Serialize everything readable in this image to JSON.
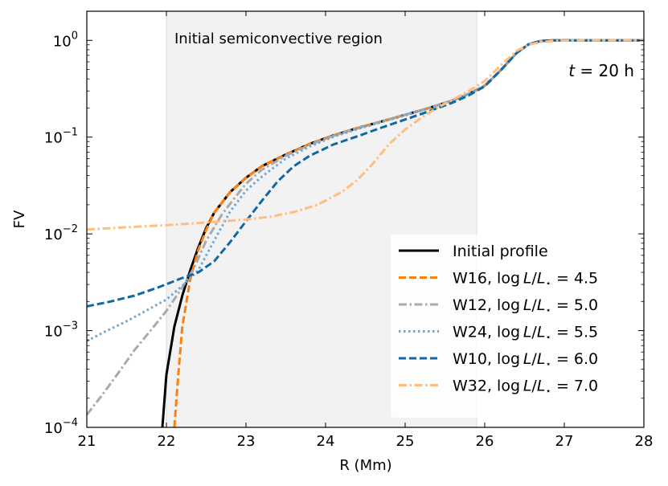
{
  "chart_data": {
    "type": "line",
    "title": "",
    "xlabel": "R (Mm)",
    "ylabel": "FV",
    "xlim": [
      21,
      28
    ],
    "ylim": [
      0.0001,
      2
    ],
    "yscale": "log",
    "x_ticks": [
      21,
      22,
      23,
      24,
      25,
      26,
      27,
      28
    ],
    "x_tick_labels": [
      "21",
      "22",
      "23",
      "24",
      "25",
      "26",
      "27",
      "28"
    ],
    "y_ticks": [
      {
        "value": 1,
        "base": "10",
        "exp": "0"
      },
      {
        "value": 0.1,
        "base": "10",
        "exp": "−1"
      },
      {
        "value": 0.01,
        "base": "10",
        "exp": "−2"
      },
      {
        "value": 0.001,
        "base": "10",
        "exp": "−3"
      },
      {
        "value": 0.0001,
        "base": "10",
        "exp": "−4"
      }
    ],
    "shaded_region": {
      "x": [
        22.0,
        25.9
      ],
      "label": "Initial semiconvective region"
    },
    "time_annotation": {
      "var": "t",
      "text": " = 20 h"
    },
    "legend_position": "lower-right",
    "series": [
      {
        "name": "Initial profile",
        "legend_text": {
          "prefix": "Initial profile",
          "math": false
        },
        "color": "#000000",
        "dash": "solid",
        "width": 3,
        "points": [
          [
            21.95,
            0.0001
          ],
          [
            22.0,
            0.00035
          ],
          [
            22.1,
            0.0011
          ],
          [
            22.2,
            0.0023
          ],
          [
            22.3,
            0.0042
          ],
          [
            22.4,
            0.0072
          ],
          [
            22.5,
            0.0115
          ],
          [
            22.6,
            0.0165
          ],
          [
            22.8,
            0.027
          ],
          [
            23.0,
            0.038
          ],
          [
            23.2,
            0.05
          ],
          [
            23.5,
            0.066
          ],
          [
            23.8,
            0.085
          ],
          [
            24.1,
            0.104
          ],
          [
            24.4,
            0.124
          ],
          [
            24.7,
            0.145
          ],
          [
            25.0,
            0.17
          ],
          [
            25.3,
            0.2
          ],
          [
            25.6,
            0.24
          ],
          [
            25.8,
            0.28
          ],
          [
            26.0,
            0.34
          ],
          [
            26.2,
            0.49
          ],
          [
            26.4,
            0.74
          ],
          [
            26.55,
            0.91
          ],
          [
            26.7,
            0.985
          ],
          [
            26.85,
            1.0
          ],
          [
            27.5,
            1.0
          ],
          [
            28,
            1.0
          ]
        ]
      },
      {
        "name": "W16, log L/L⋆ = 4.5",
        "legend_text": {
          "prefix": "W16, ",
          "value": "4.5",
          "math": true
        },
        "color": "#ff7f0e",
        "dash": "dashed",
        "width": 3,
        "points": [
          [
            22.1,
            0.0001
          ],
          [
            22.15,
            0.00035
          ],
          [
            22.2,
            0.0011
          ],
          [
            22.3,
            0.0034
          ],
          [
            22.4,
            0.0068
          ],
          [
            22.5,
            0.011
          ],
          [
            22.6,
            0.0165
          ],
          [
            22.8,
            0.027
          ],
          [
            23.0,
            0.038
          ],
          [
            23.2,
            0.05
          ],
          [
            23.5,
            0.066
          ],
          [
            23.8,
            0.085
          ],
          [
            24.1,
            0.104
          ],
          [
            24.4,
            0.124
          ],
          [
            24.7,
            0.145
          ],
          [
            25.0,
            0.17
          ],
          [
            25.3,
            0.2
          ],
          [
            25.6,
            0.24
          ],
          [
            25.8,
            0.28
          ],
          [
            26.0,
            0.34
          ],
          [
            26.2,
            0.49
          ],
          [
            26.4,
            0.74
          ],
          [
            26.55,
            0.91
          ],
          [
            26.7,
            0.985
          ],
          [
            26.85,
            1.0
          ],
          [
            27.5,
            1.0
          ],
          [
            28,
            1.0
          ]
        ]
      },
      {
        "name": "W12, log L/L⋆ = 5.0",
        "legend_text": {
          "prefix": "W12, ",
          "value": "5.0",
          "math": true
        },
        "color": "#aaaaaa",
        "dash": "dashdot",
        "width": 3,
        "points": [
          [
            21.0,
            0.000135
          ],
          [
            21.2,
            0.00022
          ],
          [
            21.4,
            0.00037
          ],
          [
            21.6,
            0.00063
          ],
          [
            21.8,
            0.001
          ],
          [
            22.0,
            0.0016
          ],
          [
            22.2,
            0.0028
          ],
          [
            22.35,
            0.0045
          ],
          [
            22.5,
            0.0085
          ],
          [
            22.7,
            0.016
          ],
          [
            22.9,
            0.026
          ],
          [
            23.0,
            0.033
          ],
          [
            23.2,
            0.046
          ],
          [
            23.5,
            0.064
          ],
          [
            23.8,
            0.083
          ],
          [
            24.1,
            0.103
          ],
          [
            24.4,
            0.123
          ],
          [
            24.7,
            0.145
          ],
          [
            25.0,
            0.17
          ],
          [
            25.3,
            0.2
          ],
          [
            25.6,
            0.24
          ],
          [
            25.8,
            0.28
          ],
          [
            26.0,
            0.34
          ],
          [
            26.2,
            0.49
          ],
          [
            26.4,
            0.74
          ],
          [
            26.55,
            0.91
          ],
          [
            26.7,
            0.985
          ],
          [
            26.85,
            1.0
          ],
          [
            28,
            1.0
          ]
        ]
      },
      {
        "name": "W24, log L/L⋆ = 5.5",
        "legend_text": {
          "prefix": "W24, ",
          "value": "5.5",
          "math": true
        },
        "color": "#6fa6d6",
        "dash": "dotted",
        "width": 3,
        "points": [
          [
            21.0,
            0.00078
          ],
          [
            21.2,
            0.00095
          ],
          [
            21.5,
            0.00125
          ],
          [
            21.8,
            0.0017
          ],
          [
            22.0,
            0.0021
          ],
          [
            22.2,
            0.0029
          ],
          [
            22.4,
            0.0042
          ],
          [
            22.6,
            0.0085
          ],
          [
            22.8,
            0.017
          ],
          [
            23.0,
            0.028
          ],
          [
            23.2,
            0.039
          ],
          [
            23.5,
            0.06
          ],
          [
            23.8,
            0.08
          ],
          [
            24.1,
            0.101
          ],
          [
            24.4,
            0.121
          ],
          [
            24.7,
            0.143
          ],
          [
            25.0,
            0.168
          ],
          [
            25.3,
            0.199
          ],
          [
            25.6,
            0.24
          ],
          [
            25.8,
            0.28
          ],
          [
            26.0,
            0.34
          ],
          [
            26.2,
            0.49
          ],
          [
            26.4,
            0.74
          ],
          [
            26.55,
            0.91
          ],
          [
            26.7,
            0.985
          ],
          [
            26.85,
            1.0
          ],
          [
            28,
            1.0
          ]
        ]
      },
      {
        "name": "W10, log L/L⋆ = 6.0",
        "legend_text": {
          "prefix": "W10, ",
          "value": "6.0",
          "math": true
        },
        "color": "#0f6aa3",
        "dash": "dashed",
        "width": 3,
        "points": [
          [
            21.0,
            0.00178
          ],
          [
            21.3,
            0.002
          ],
          [
            21.6,
            0.0023
          ],
          [
            21.9,
            0.0028
          ],
          [
            22.2,
            0.0035
          ],
          [
            22.4,
            0.004
          ],
          [
            22.6,
            0.0052
          ],
          [
            22.8,
            0.0082
          ],
          [
            23.0,
            0.0135
          ],
          [
            23.2,
            0.022
          ],
          [
            23.4,
            0.035
          ],
          [
            23.6,
            0.05
          ],
          [
            23.8,
            0.064
          ],
          [
            24.1,
            0.084
          ],
          [
            24.4,
            0.102
          ],
          [
            24.7,
            0.125
          ],
          [
            25.0,
            0.152
          ],
          [
            25.3,
            0.185
          ],
          [
            25.6,
            0.228
          ],
          [
            25.8,
            0.27
          ],
          [
            26.0,
            0.335
          ],
          [
            26.2,
            0.49
          ],
          [
            26.4,
            0.74
          ],
          [
            26.55,
            0.91
          ],
          [
            26.7,
            0.985
          ],
          [
            26.85,
            1.0
          ],
          [
            28,
            1.0
          ]
        ]
      },
      {
        "name": "W32, log L/L⋆ = 7.0",
        "legend_text": {
          "prefix": "W32, ",
          "value": "7.0",
          "math": true
        },
        "color": "#ffbe7d",
        "dash": "dashdot",
        "width": 3,
        "points": [
          [
            21.0,
            0.0111
          ],
          [
            21.5,
            0.0117
          ],
          [
            22.0,
            0.0123
          ],
          [
            22.5,
            0.0131
          ],
          [
            23.0,
            0.0141
          ],
          [
            23.3,
            0.015
          ],
          [
            23.6,
            0.0168
          ],
          [
            23.9,
            0.02
          ],
          [
            24.2,
            0.027
          ],
          [
            24.4,
            0.036
          ],
          [
            24.6,
            0.054
          ],
          [
            24.8,
            0.085
          ],
          [
            25.0,
            0.12
          ],
          [
            25.2,
            0.158
          ],
          [
            25.4,
            0.2
          ],
          [
            25.6,
            0.245
          ],
          [
            25.8,
            0.3
          ],
          [
            26.0,
            0.38
          ],
          [
            26.2,
            0.55
          ],
          [
            26.4,
            0.78
          ],
          [
            26.55,
            0.9
          ],
          [
            26.7,
            0.96
          ],
          [
            26.9,
            0.99
          ],
          [
            27.2,
            1.0
          ],
          [
            28,
            1.0
          ]
        ]
      }
    ]
  }
}
